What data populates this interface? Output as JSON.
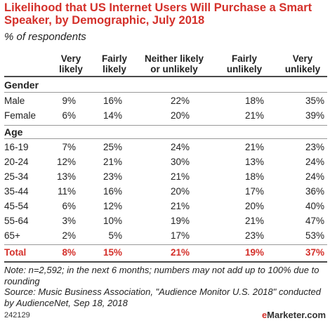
{
  "chart_data": {
    "type": "table",
    "title": "Likelihood that US Internet Users Will Purchase a Smart Speaker, by Demographic, July 2018",
    "subtitle": "% of respondents",
    "columns": [
      [
        "Very",
        "likely"
      ],
      [
        "Fairly",
        "likely"
      ],
      [
        "Neither likely",
        "or unlikely"
      ],
      [
        "Fairly",
        "unlikely"
      ],
      [
        "Very",
        "unlikely"
      ]
    ],
    "groups": [
      {
        "label": "Gender",
        "rows": [
          {
            "label": "Male",
            "values": [
              "9%",
              "16%",
              "22%",
              "18%",
              "35%"
            ]
          },
          {
            "label": "Female",
            "values": [
              "6%",
              "14%",
              "20%",
              "21%",
              "39%"
            ]
          }
        ]
      },
      {
        "label": "Age",
        "rows": [
          {
            "label": "16-19",
            "values": [
              "7%",
              "25%",
              "24%",
              "21%",
              "23%"
            ]
          },
          {
            "label": "20-24",
            "values": [
              "12%",
              "21%",
              "30%",
              "13%",
              "24%"
            ]
          },
          {
            "label": "25-34",
            "values": [
              "13%",
              "23%",
              "21%",
              "18%",
              "24%"
            ]
          },
          {
            "label": "35-44",
            "values": [
              "11%",
              "16%",
              "20%",
              "17%",
              "36%"
            ]
          },
          {
            "label": "45-54",
            "values": [
              "6%",
              "12%",
              "21%",
              "20%",
              "40%"
            ]
          },
          {
            "label": "55-64",
            "values": [
              "3%",
              "10%",
              "19%",
              "21%",
              "47%"
            ]
          },
          {
            "label": "65+",
            "values": [
              "2%",
              "5%",
              "17%",
              "23%",
              "53%"
            ]
          }
        ]
      }
    ],
    "total": {
      "label": "Total",
      "values": [
        "8%",
        "15%",
        "21%",
        "19%",
        "37%"
      ]
    },
    "note": "Note: n=2,592; in the next 6 months; numbers may not add up to 100% due to rounding",
    "source": "Source: Music Business Association, \"Audience Monitor U.S. 2018\" conducted by AudienceNet, Sep 18, 2018"
  },
  "footer": {
    "id": "242129",
    "logo_prefix": "e",
    "logo_main": "Marketer",
    "logo_suffix": ".com"
  },
  "colors": {
    "accent": "#d4302a",
    "text": "#222222",
    "rule": "#9a9a9a"
  }
}
